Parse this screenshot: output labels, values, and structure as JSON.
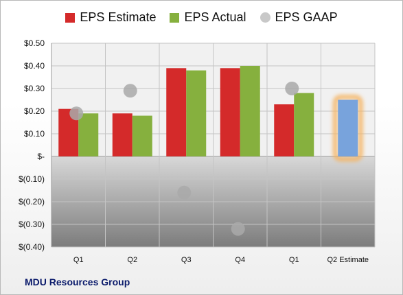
{
  "legend": {
    "estimate_label": "EPS Estimate",
    "actual_label": "EPS Actual",
    "gaap_label": "EPS GAAP"
  },
  "company_name": "MDU Resources Group",
  "colors": {
    "estimate": "#d42a2a",
    "actual": "#86b03e",
    "gaap": "#a9a9a9",
    "projected": "#78a3dc",
    "projected_glow": "#f5b462"
  },
  "chart_data": {
    "type": "bar",
    "categories": [
      "Q1",
      "Q2",
      "Q3",
      "Q4",
      "Q1",
      "Q2 Estimate"
    ],
    "series": [
      {
        "name": "EPS Estimate",
        "values": [
          0.21,
          0.19,
          0.39,
          0.39,
          0.23,
          null
        ]
      },
      {
        "name": "EPS Actual",
        "values": [
          0.19,
          0.18,
          0.38,
          0.4,
          0.28,
          0.25
        ]
      },
      {
        "name": "EPS GAAP",
        "values": [
          0.19,
          0.29,
          -0.16,
          -0.32,
          0.3,
          null
        ]
      }
    ],
    "ylim": [
      -0.4,
      0.5
    ],
    "yticks": [
      0.5,
      0.4,
      0.3,
      0.2,
      0.1,
      0,
      -0.1,
      -0.2,
      -0.3,
      -0.4
    ],
    "ytick_labels": [
      "$0.50",
      "$0.40",
      "$0.30",
      "$0.20",
      "$0.10",
      "$-",
      "$(0.10)",
      "$(0.20)",
      "$(0.30)",
      "$(0.40)"
    ],
    "grid": true,
    "legend_position": "top",
    "projected_category": "Q2 Estimate"
  }
}
